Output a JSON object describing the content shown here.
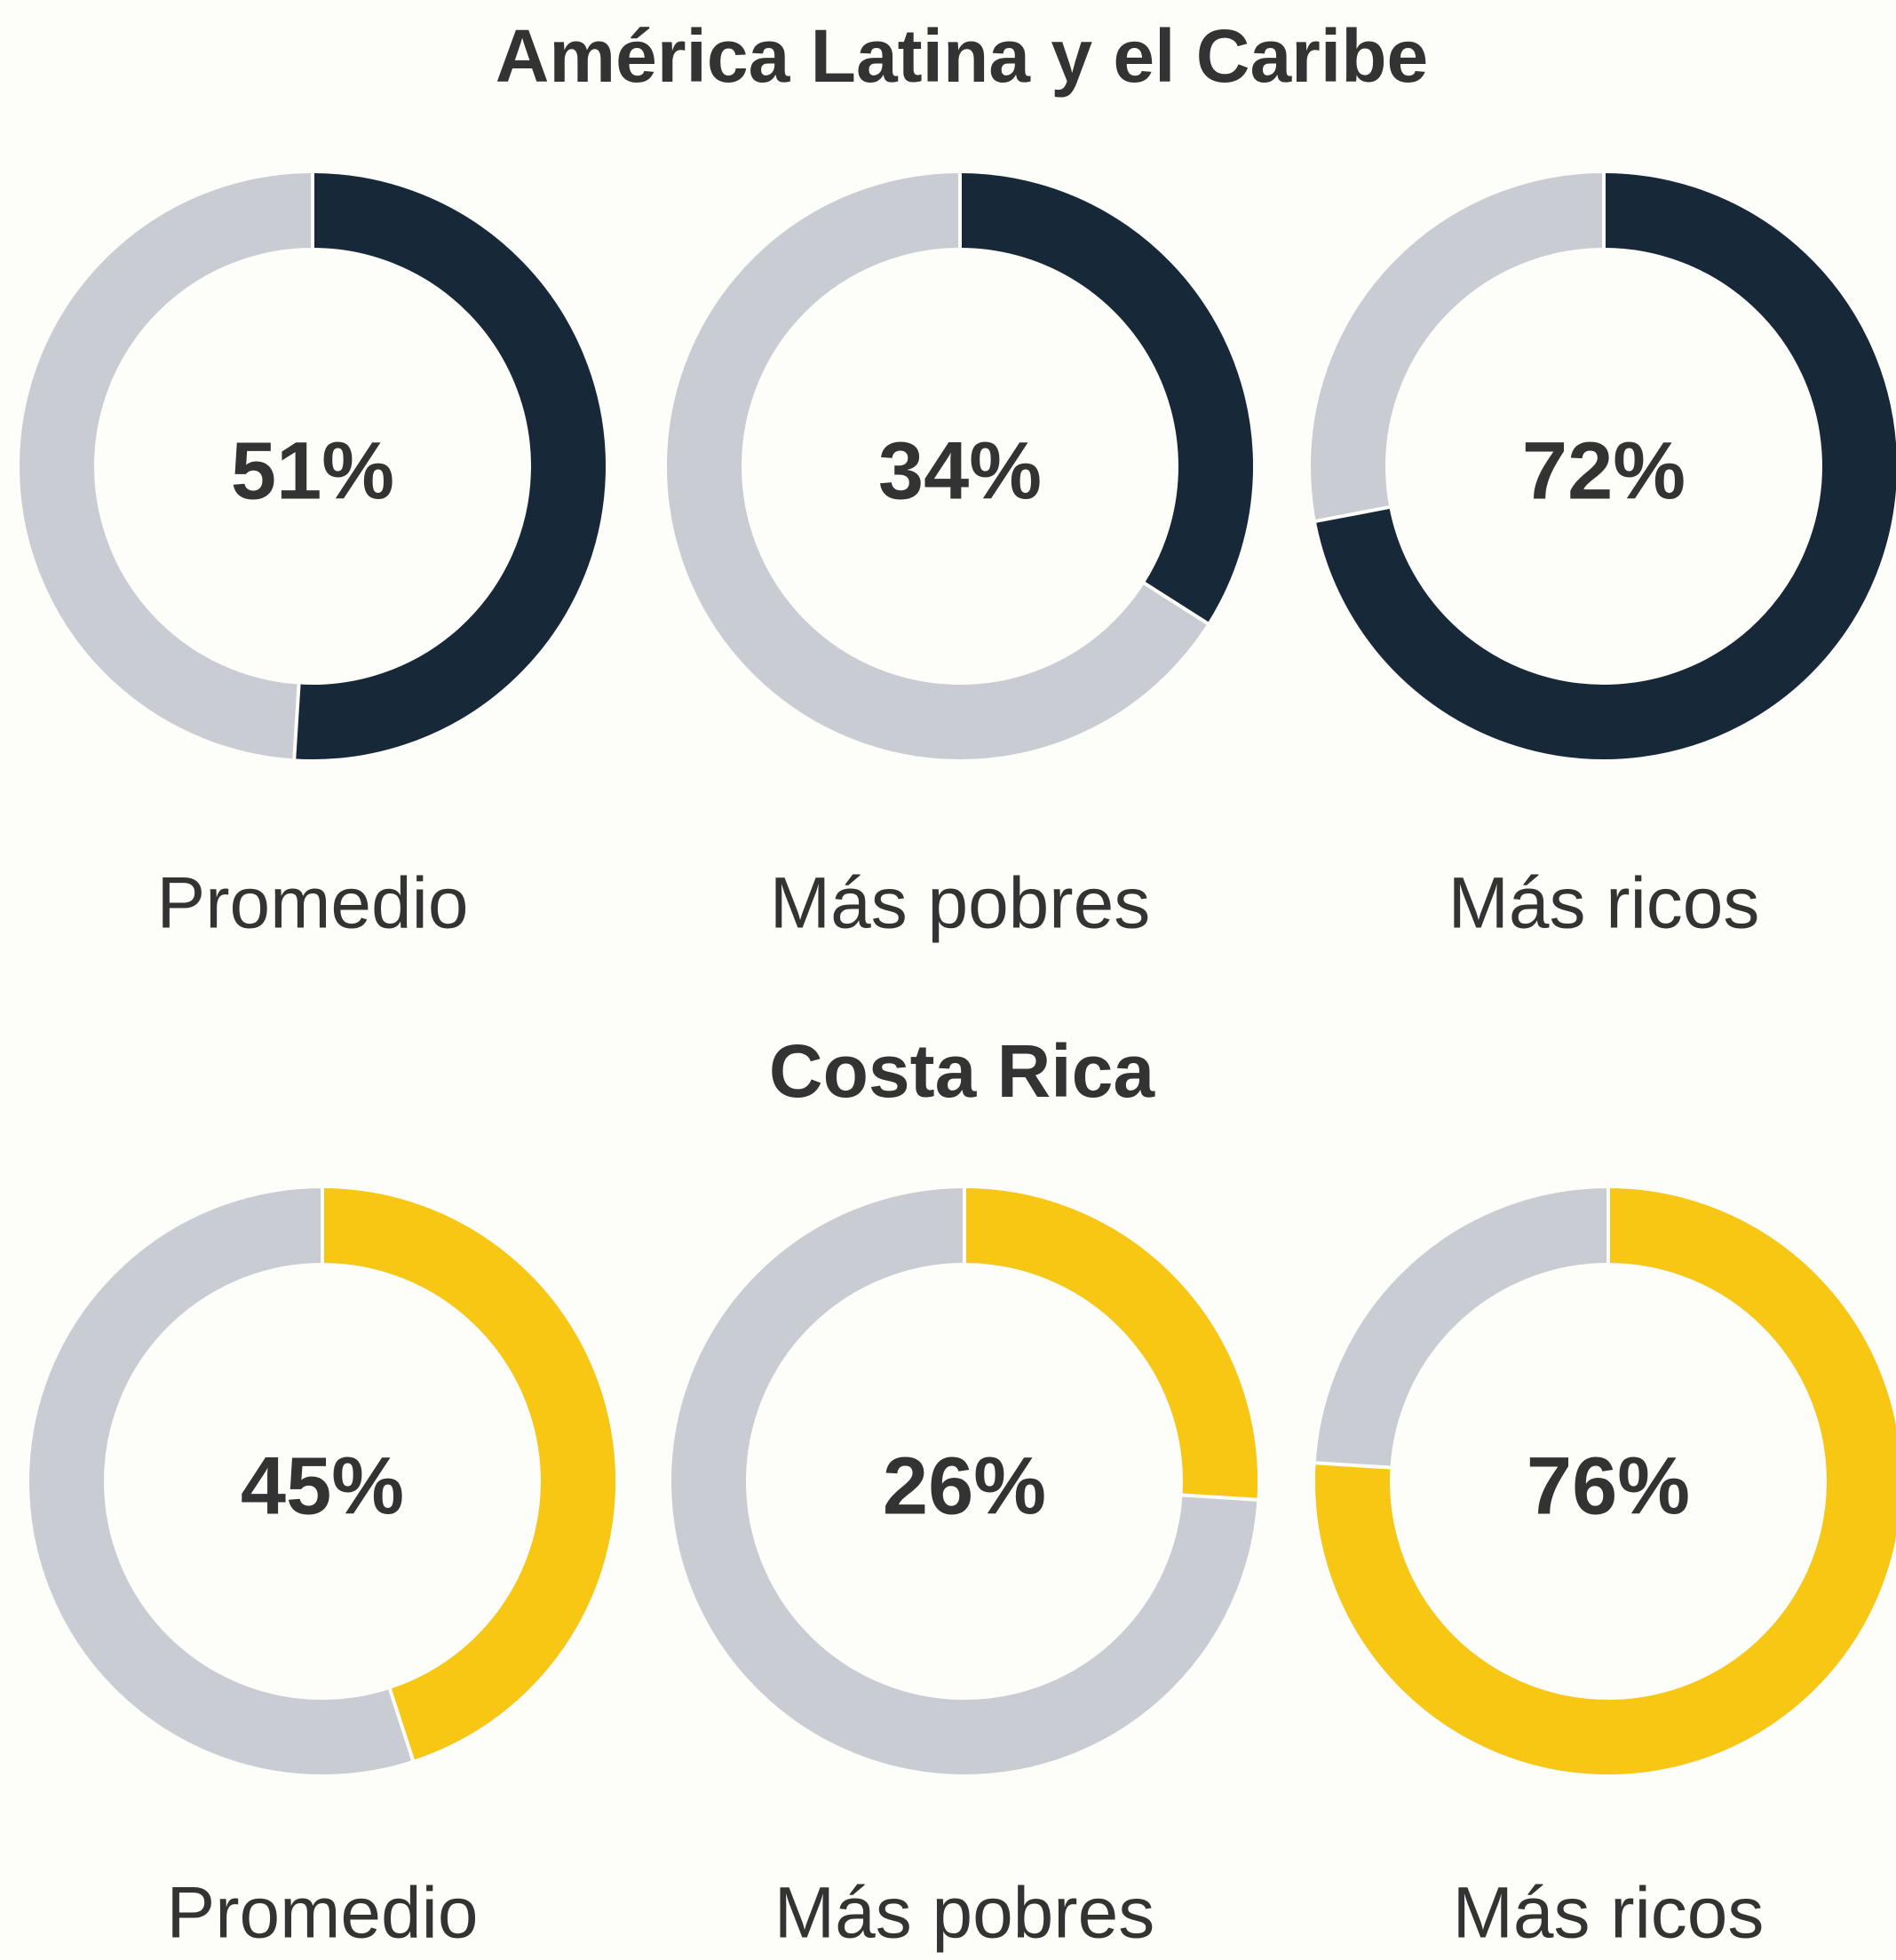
{
  "chart_data": [
    {
      "type": "donut",
      "title": "América Latina y el Caribe",
      "categories": [
        "Promedio",
        "Más pobres",
        "Más ricos"
      ],
      "values": [
        51,
        34,
        72
      ],
      "value_labels": [
        "51%",
        "34%",
        "72%"
      ],
      "color": "#172839",
      "track_color": "#c9ccd2"
    },
    {
      "type": "donut",
      "title": "Costa Rica",
      "categories": [
        "Promedio",
        "Más pobres",
        "Más ricos"
      ],
      "values": [
        45,
        26,
        76
      ],
      "value_labels": [
        "45%",
        "26%",
        "76%"
      ],
      "color": "#f7c713",
      "track_color": "#c9ccd2"
    }
  ]
}
